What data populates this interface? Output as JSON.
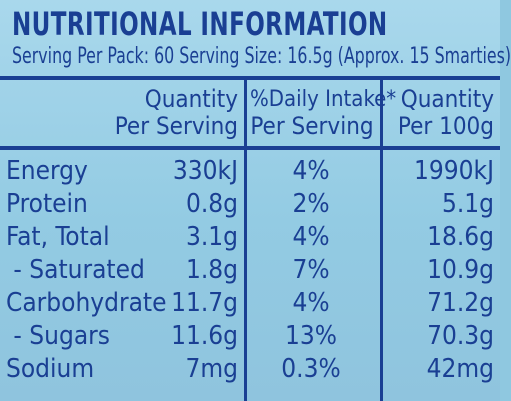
{
  "title": "NUTRITIONAL INFORMATION",
  "serving_line": "Serving Per Pack: 60  Serving Size: 16.5g (Approx. 15 Smarties)",
  "headers": {
    "quantity_serving": [
      "Quantity",
      "Per Serving"
    ],
    "daily_intake": [
      "%Daily Intake*",
      "Per Serving"
    ],
    "quantity_100g": [
      "Quantity",
      "Per 100g"
    ]
  },
  "rows": [
    {
      "name": "Energy",
      "per_serving": "330kJ",
      "daily_intake": "4%",
      "per_100g": "1990kJ"
    },
    {
      "name": "Protein",
      "per_serving": "0.8g",
      "daily_intake": "2%",
      "per_100g": "5.1g"
    },
    {
      "name": "Fat, Total",
      "per_serving": "3.1g",
      "daily_intake": "4%",
      "per_100g": "18.6g"
    },
    {
      "name": " - Saturated",
      "per_serving": "1.8g",
      "daily_intake": "7%",
      "per_100g": "10.9g"
    },
    {
      "name": "Carbohydrate",
      "per_serving": "11.7g",
      "daily_intake": "4%",
      "per_100g": "71.2g"
    },
    {
      "name": " - Sugars",
      "per_serving": "11.6g",
      "daily_intake": "13%",
      "per_100g": "70.3g"
    },
    {
      "name": "Sodium",
      "per_serving": "7mg",
      "daily_intake": "0.3%",
      "per_100g": "42mg"
    }
  ],
  "colors": {
    "ink": "#1a3f93",
    "label_background": "#93cbe3"
  }
}
